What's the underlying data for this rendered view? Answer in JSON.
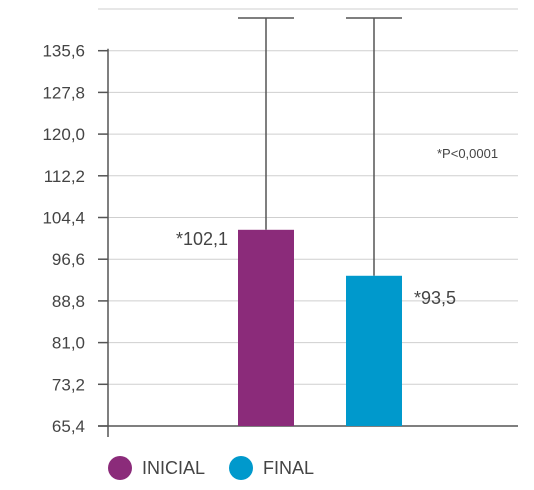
{
  "chart_data": {
    "type": "bar",
    "categories": [
      "INICIAL",
      "FINAL"
    ],
    "values": [
      102.1,
      93.5
    ],
    "value_labels": [
      "*102,1",
      "*93,5"
    ],
    "error_bars_upper": [
      143.4,
      143.4
    ],
    "colors": [
      "#8b2b7a",
      "#0099cc"
    ],
    "y_ticks": [
      65.4,
      73.2,
      81.0,
      88.8,
      96.6,
      104.4,
      112.2,
      120.0,
      127.8,
      135.6
    ],
    "y_tick_labels": [
      "65,4",
      "73,2",
      "81,0",
      "88,8",
      "96,6",
      "104,4",
      "112,2",
      "120,0",
      "127,8",
      "135,6"
    ],
    "ylim": [
      65.4,
      143.4
    ],
    "grid": true,
    "annotation": "*P<0,0001",
    "legend": [
      {
        "name": "INICIAL",
        "color": "#8b2b7a"
      },
      {
        "name": "FINAL",
        "color": "#0099cc"
      }
    ],
    "legend_position": "bottom-left"
  }
}
